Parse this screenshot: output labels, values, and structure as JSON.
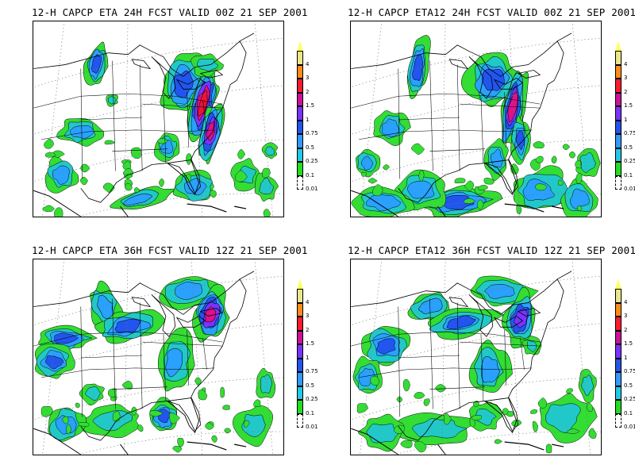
{
  "panels": [
    {
      "title": "12-H CAPCP ETA 24H FCST VALID 00Z 21 SEP 2001"
    },
    {
      "title": "12-H CAPCP ETA12 24H FCST VALID 00Z 21 SEP 2001"
    },
    {
      "title": "12-H CAPCP ETA 36H FCST VALID 12Z 21 SEP 2001"
    },
    {
      "title": "12-H CAPCP ETA12 36H FCST VALID 12Z 21 SEP 2001"
    }
  ],
  "colorbar": {
    "labels": [
      "4",
      "3",
      "2",
      "1.5",
      "1",
      "0.75",
      "0.5",
      "0.25",
      "0.1",
      "0.01"
    ],
    "colors": [
      "#ffff66",
      "#e8e88a",
      "#ff8c1a",
      "#ff1a2e",
      "#cc1199",
      "#7a33ff",
      "#2255ee",
      "#3399ff",
      "#22c8e8",
      "#22dd22",
      "#ffffff"
    ]
  },
  "map_colors": {
    "light": "#33dd33",
    "teal": "#22c8c8",
    "cyan": "#2aa0ff",
    "blue": "#2255ee",
    "purple": "#7a33ff",
    "magenta": "#dd1188",
    "red": "#ee1133"
  }
}
